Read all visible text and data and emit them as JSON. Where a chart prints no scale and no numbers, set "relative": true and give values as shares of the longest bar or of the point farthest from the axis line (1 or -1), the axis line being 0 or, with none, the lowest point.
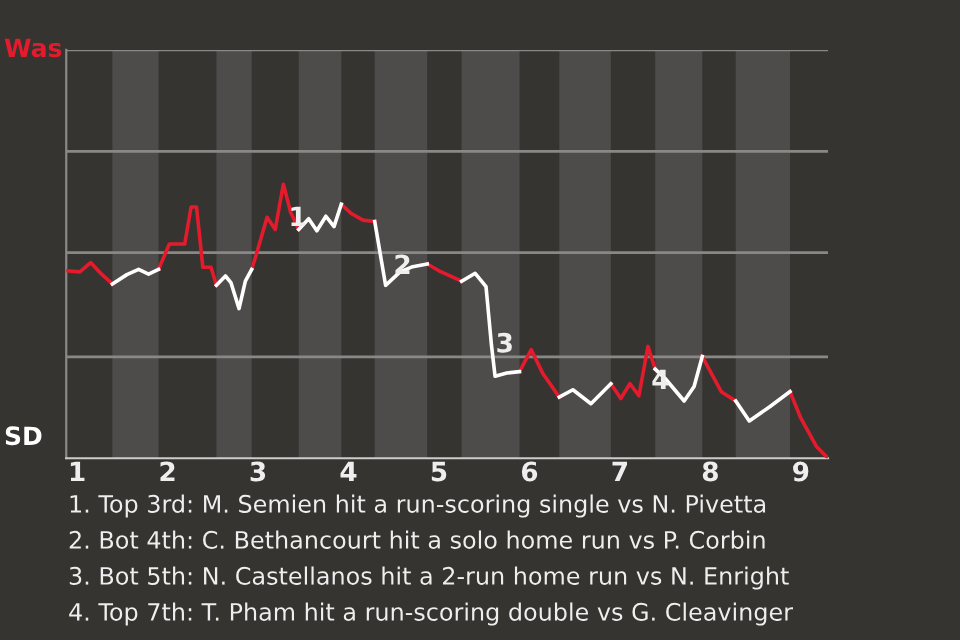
{
  "chart_data": {
    "type": "line",
    "relative": true,
    "legend": false,
    "ref_lines": [
      {
        "axis": "y",
        "value": 0.37,
        "color": "#8a8886"
      },
      {
        "axis": "y",
        "value": 0.75,
        "color": "#8a8886"
      },
      {
        "axis": "y",
        "value": 1.12,
        "color": "#8a8886"
      },
      {
        "axis": "y",
        "value": 1.49,
        "color": "#8a8886"
      }
    ],
    "marker": "none",
    "line_style": "solid",
    "x": [
      0.88,
      1.03,
      1.15,
      1.26,
      1.39,
      1.55,
      1.68,
      1.79,
      1.9,
      2.02,
      2.19,
      2.26,
      2.32,
      2.39,
      2.48,
      2.54,
      2.64,
      2.7,
      2.79,
      2.86,
      2.93,
      3.0,
      3.1,
      3.19,
      3.28,
      3.36,
      3.45,
      3.56,
      3.65,
      3.75,
      3.84,
      3.92,
      4.03,
      4.16,
      4.29,
      4.41,
      4.57,
      4.71,
      4.87,
      5.0,
      5.25,
      5.4,
      5.52,
      5.58,
      5.62,
      5.75,
      5.89,
      6.02,
      6.15,
      6.33,
      6.48,
      6.68,
      6.9,
      7.01,
      7.11,
      7.21,
      7.31,
      7.39,
      7.5,
      7.71,
      7.82,
      7.91,
      8.12,
      8.28,
      8.43,
      8.66,
      8.88,
      9.0,
      9.17,
      9.3
    ],
    "xlim": [
      0.88,
      9.3
    ],
    "xticks": [
      1,
      2,
      3,
      4,
      5,
      6,
      7,
      8,
      9
    ],
    "series": [
      {
        "color": "#e41b2c",
        "values": [
          0.684,
          0.68,
          0.714,
          0.675,
          0.636,
          null,
          null,
          null,
          0.689,
          0.782,
          0.782,
          0.917,
          0.917,
          0.697,
          0.697,
          0.631,
          null,
          null,
          null,
          null,
          0.689,
          0.765,
          0.879,
          0.835,
          1.0,
          0.898,
          0.835,
          null,
          null,
          null,
          null,
          0.927,
          0.893,
          0.869,
          0.864,
          null,
          null,
          null,
          0.709,
          0.684,
          0.646,
          null,
          null,
          null,
          null,
          null,
          0.316,
          0.396,
          0.308,
          0.223,
          null,
          null,
          0.272,
          0.218,
          0.272,
          0.228,
          0.408,
          0.325,
          null,
          null,
          null,
          0.371,
          0.243,
          0.209,
          null,
          null,
          0.243,
          0.146,
          0.044,
          0
        ]
      },
      {
        "color": "#ffffff",
        "values": [
          null,
          null,
          null,
          null,
          0.636,
          0.67,
          0.689,
          0.672,
          0.689,
          null,
          null,
          null,
          null,
          null,
          null,
          0.631,
          0.665,
          0.641,
          0.546,
          0.646,
          0.689,
          null,
          null,
          null,
          null,
          null,
          0.835,
          0.874,
          0.83,
          0.883,
          0.845,
          0.927,
          null,
          null,
          0.864,
          0.631,
          0.68,
          0.699,
          0.709,
          null,
          0.646,
          0.675,
          0.626,
          0.413,
          0.299,
          0.311,
          0.316,
          null,
          null,
          0.223,
          0.25,
          0.199,
          0.272,
          null,
          null,
          null,
          null,
          0.325,
          0.291,
          0.209,
          0.262,
          0.371,
          null,
          0.209,
          0.136,
          0.189,
          0.243,
          null,
          null,
          null
        ]
      }
    ],
    "bands": [
      {
        "axis": "x",
        "from": 1.39,
        "to": 1.9,
        "color": "#4d4c4a"
      },
      {
        "axis": "x",
        "from": 2.54,
        "to": 2.93,
        "color": "#4d4c4a"
      },
      {
        "axis": "x",
        "from": 3.45,
        "to": 3.92,
        "color": "#4d4c4a"
      },
      {
        "axis": "x",
        "from": 4.29,
        "to": 4.87,
        "color": "#4d4c4a"
      },
      {
        "axis": "x",
        "from": 5.25,
        "to": 5.89,
        "color": "#4d4c4a"
      },
      {
        "axis": "x",
        "from": 6.33,
        "to": 6.9,
        "color": "#4d4c4a"
      },
      {
        "axis": "x",
        "from": 7.39,
        "to": 7.91,
        "color": "#4d4c4a"
      },
      {
        "axis": "x",
        "from": 8.28,
        "to": 8.88,
        "color": "#4d4c4a"
      }
    ],
    "annotations": [
      {
        "text": "1",
        "x": 3.29,
        "y": 0.874
      },
      {
        "text": "2",
        "x": 4.45,
        "y": 0.699
      },
      {
        "text": "3",
        "x": 5.58,
        "y": 0.413
      },
      {
        "text": "4",
        "x": 7.3,
        "y": 0.279
      },
      "Was",
      "SD",
      "1. Top 3rd: M. Semien hit a run-scoring single vs N. Pivetta",
      "2. Bot 4th: C. Bethancourt hit a solo home run vs P. Corbin",
      "3. Bot 5th: N. Castellanos hit a 2-run home run vs N. Enright",
      "4. Top 7th: T. Pham hit a run-scoring double vs G. Cleavinger"
    ]
  }
}
